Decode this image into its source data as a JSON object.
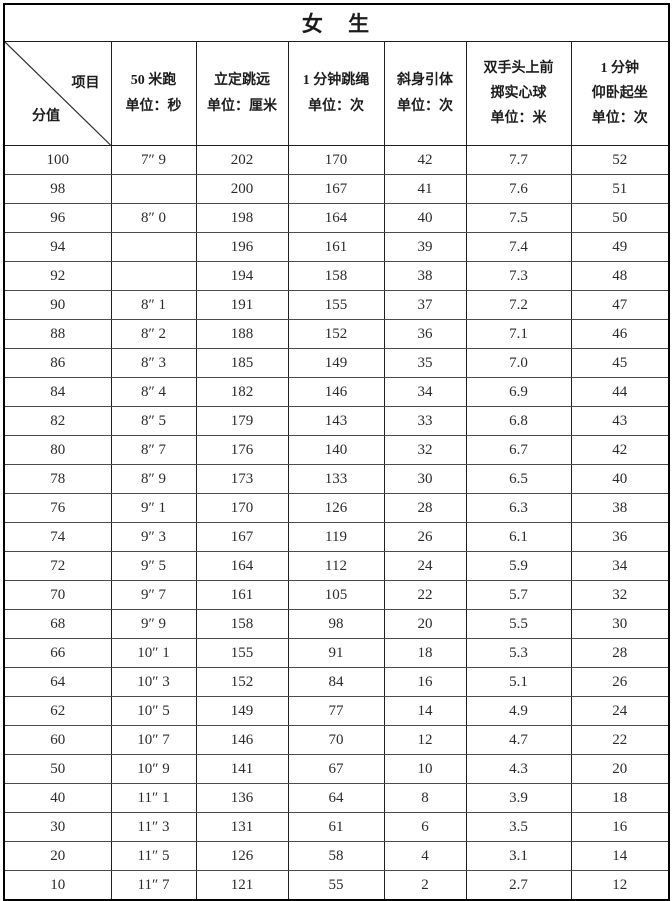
{
  "table": {
    "title": "女  生",
    "corner": {
      "top_right_label": "项目",
      "bottom_left_label": "分值"
    },
    "columns": [
      {
        "lines": [
          "50 米跑",
          "单位：秒"
        ]
      },
      {
        "lines": [
          "立定跳远",
          "单位：厘米"
        ]
      },
      {
        "lines": [
          "1 分钟跳绳",
          "单位：次"
        ]
      },
      {
        "lines": [
          "斜身引体",
          "单位：次"
        ]
      },
      {
        "lines": [
          "双手头上前",
          "掷实心球",
          "单位：米"
        ]
      },
      {
        "lines": [
          "1 分钟",
          "仰卧起坐",
          "单位：次"
        ]
      }
    ],
    "rows": [
      {
        "score": "100",
        "cells": [
          "7″ 9",
          "202",
          "170",
          "42",
          "7.7",
          "52"
        ]
      },
      {
        "score": "98",
        "cells": [
          "",
          "200",
          "167",
          "41",
          "7.6",
          "51"
        ]
      },
      {
        "score": "96",
        "cells": [
          "8″ 0",
          "198",
          "164",
          "40",
          "7.5",
          "50"
        ]
      },
      {
        "score": "94",
        "cells": [
          "",
          "196",
          "161",
          "39",
          "7.4",
          "49"
        ]
      },
      {
        "score": "92",
        "cells": [
          "",
          "194",
          "158",
          "38",
          "7.3",
          "48"
        ]
      },
      {
        "score": "90",
        "cells": [
          "8″ 1",
          "191",
          "155",
          "37",
          "7.2",
          "47"
        ]
      },
      {
        "score": "88",
        "cells": [
          "8″ 2",
          "188",
          "152",
          "36",
          "7.1",
          "46"
        ]
      },
      {
        "score": "86",
        "cells": [
          "8″ 3",
          "185",
          "149",
          "35",
          "7.0",
          "45"
        ]
      },
      {
        "score": "84",
        "cells": [
          "8″ 4",
          "182",
          "146",
          "34",
          "6.9",
          "44"
        ]
      },
      {
        "score": "82",
        "cells": [
          "8″ 5",
          "179",
          "143",
          "33",
          "6.8",
          "43"
        ]
      },
      {
        "score": "80",
        "cells": [
          "8″ 7",
          "176",
          "140",
          "32",
          "6.7",
          "42"
        ]
      },
      {
        "score": "78",
        "cells": [
          "8″ 9",
          "173",
          "133",
          "30",
          "6.5",
          "40"
        ]
      },
      {
        "score": "76",
        "cells": [
          "9″ 1",
          "170",
          "126",
          "28",
          "6.3",
          "38"
        ]
      },
      {
        "score": "74",
        "cells": [
          "9″ 3",
          "167",
          "119",
          "26",
          "6.1",
          "36"
        ]
      },
      {
        "score": "72",
        "cells": [
          "9″ 5",
          "164",
          "112",
          "24",
          "5.9",
          "34"
        ]
      },
      {
        "score": "70",
        "cells": [
          "9″ 7",
          "161",
          "105",
          "22",
          "5.7",
          "32"
        ]
      },
      {
        "score": "68",
        "cells": [
          "9″ 9",
          "158",
          "98",
          "20",
          "5.5",
          "30"
        ]
      },
      {
        "score": "66",
        "cells": [
          "10″ 1",
          "155",
          "91",
          "18",
          "5.3",
          "28"
        ]
      },
      {
        "score": "64",
        "cells": [
          "10″ 3",
          "152",
          "84",
          "16",
          "5.1",
          "26"
        ]
      },
      {
        "score": "62",
        "cells": [
          "10″ 5",
          "149",
          "77",
          "14",
          "4.9",
          "24"
        ]
      },
      {
        "score": "60",
        "cells": [
          "10″ 7",
          "146",
          "70",
          "12",
          "4.7",
          "22"
        ]
      },
      {
        "score": "50",
        "cells": [
          "10″ 9",
          "141",
          "67",
          "10",
          "4.3",
          "20"
        ]
      },
      {
        "score": "40",
        "cells": [
          "11″ 1",
          "136",
          "64",
          "8",
          "3.9",
          "18"
        ]
      },
      {
        "score": "30",
        "cells": [
          "11″ 3",
          "131",
          "61",
          "6",
          "3.5",
          "16"
        ]
      },
      {
        "score": "20",
        "cells": [
          "11″ 5",
          "126",
          "58",
          "4",
          "3.1",
          "14"
        ]
      },
      {
        "score": "10",
        "cells": [
          "11″ 7",
          "121",
          "55",
          "2",
          "2.7",
          "12"
        ]
      }
    ]
  },
  "colors": {
    "outer_border": "#000000",
    "grid_line": "#4a4a4a",
    "text": "#1c1c1c",
    "background": "#ffffff"
  }
}
